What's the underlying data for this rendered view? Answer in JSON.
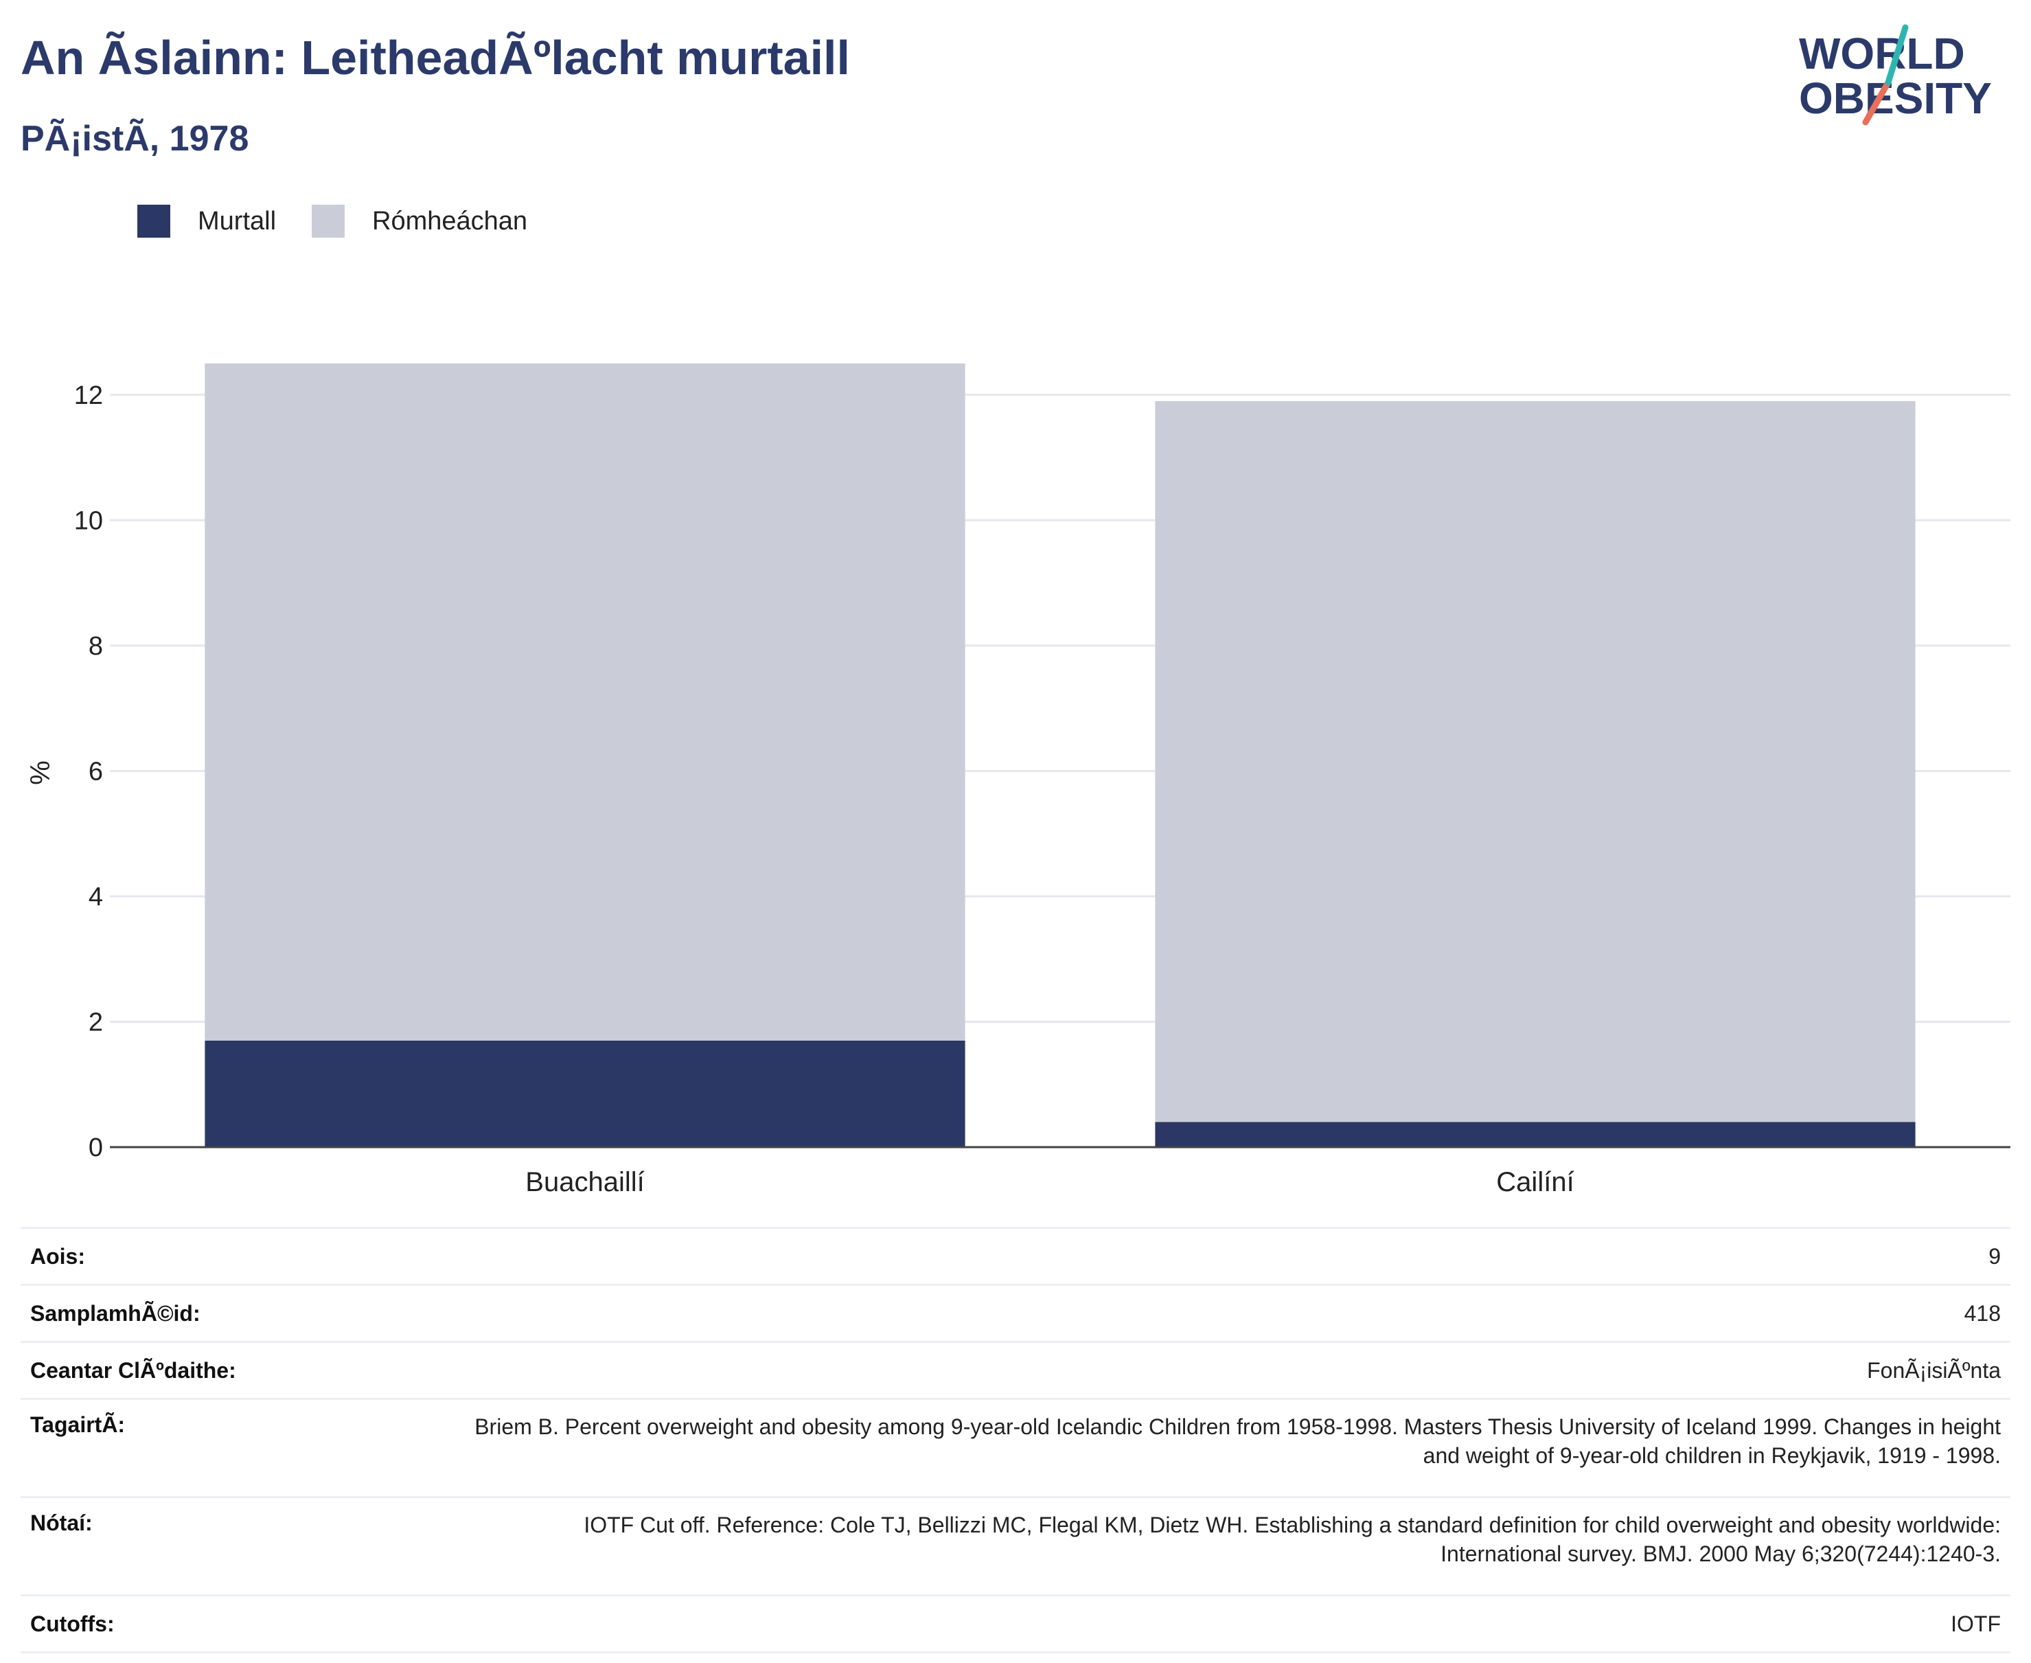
{
  "header": {
    "title": "An Ãslainn: LeitheadÃºlacht murtaill",
    "subtitle": "PÃ¡istÃ, 1978"
  },
  "logo": {
    "line1": "WORLD",
    "line2": "OBESITY"
  },
  "colors": {
    "obese": "#2b3764",
    "overweight": "#caccd7",
    "title": "#2b3a6a",
    "grid": "#e6e6ef"
  },
  "chart_data": {
    "type": "bar",
    "stacked": true,
    "categories": [
      "Buachaillí",
      "Cailíní"
    ],
    "series": [
      {
        "name": "Murtall",
        "values": [
          1.7,
          0.4
        ]
      },
      {
        "name": "Rómheáchan",
        "values": [
          10.8,
          11.5
        ]
      }
    ],
    "xlabel": "",
    "ylabel": "%",
    "ylim": [
      0,
      12.6
    ],
    "yticks": [
      0,
      2,
      4,
      6,
      8,
      10,
      12
    ],
    "grid": true,
    "legend_position": "top-left"
  },
  "info_rows": [
    {
      "label": "Aois:",
      "value": "9"
    },
    {
      "label": "SamplamhÃ©id:",
      "value": "418"
    },
    {
      "label": "Ceantar ClÃºdaithe:",
      "value": "FonÃ¡isiÃºnta"
    },
    {
      "label": "TagairtÃ:",
      "value": "Briem B. Percent overweight and obesity among 9-year-old Icelandic Children from 1958-1998. Masters Thesis University of Iceland 1999. Changes in height and weight of 9-year-old children in Reykjavik, 1919 - 1998."
    },
    {
      "label": "Nótaí:",
      "value": "IOTF Cut off. Reference: Cole TJ, Bellizzi MC, Flegal KM, Dietz WH. Establishing a standard definition for child overweight and obesity worldwide: International survey. BMJ. 2000 May 6;320(7244):1240-3."
    },
    {
      "label": "Cutoffs:",
      "value": "IOTF"
    }
  ]
}
